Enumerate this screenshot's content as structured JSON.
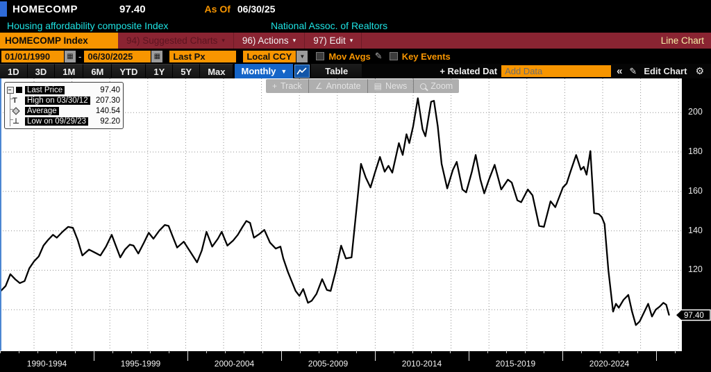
{
  "titlebar": {
    "ticker": "HOMECOMP",
    "price": "97.40",
    "as_of_label": "As Of",
    "as_of_date": "06/30/25"
  },
  "subtitle": {
    "description": "Housing affordability composite Index",
    "source": "National Assoc. of Realtors"
  },
  "menubar": {
    "security_box": "HOMECOMP Index",
    "items": [
      {
        "label": "94) Suggested Charts",
        "caret": "▾",
        "disabled": true
      },
      {
        "label": "96) Actions",
        "caret": "▾",
        "disabled": false
      },
      {
        "label": "97) Edit",
        "caret": "▾",
        "disabled": false
      }
    ],
    "right_label": "Line Chart"
  },
  "toolbar": {
    "start_date": "01/01/1990",
    "range_separator": "-",
    "end_date": "06/30/2025",
    "price_field": "Last Px",
    "currency_field": "Local CCY",
    "mov_avgs_label": "Mov Avgs",
    "key_events_label": "Key Events",
    "calendar_icon": "▦",
    "dropdown_icon": "▼",
    "pencil_icon": "✎"
  },
  "tabbar": {
    "ranges": [
      "1D",
      "3D",
      "1M",
      "6M",
      "YTD",
      "1Y",
      "5Y",
      "Max"
    ],
    "period": "Monthly",
    "period_caret": "▼",
    "table_label": "Table",
    "related_label": "+ Related Dat",
    "add_data_placeholder": "Add Data",
    "collapse_label": "«",
    "edit_chart_label": "Edit Chart",
    "edit_pencil": "✎",
    "gear_icon": "⚙"
  },
  "chart_tools": {
    "items": [
      "Track",
      "Annotate",
      "News",
      "Zoom"
    ],
    "icons": [
      "+",
      "∠",
      "▤",
      "mag"
    ]
  },
  "legend": {
    "rows": [
      {
        "label": "Last Price",
        "value": "97.40"
      },
      {
        "label": "High on 03/30/12",
        "value": "207.30"
      },
      {
        "label": "Average",
        "value": "140.54"
      },
      {
        "label": "Low on 09/29/23",
        "value": "92.20"
      }
    ]
  },
  "colors": {
    "amber": "#f79500",
    "maroon": "#8a2432",
    "cyan": "#1ee3e3",
    "blue": "#1565c8",
    "line": "#000000",
    "grid": "#8f8f8f"
  },
  "chart_data": {
    "type": "line",
    "title": "HOMECOMP Index - Housing affordability composite Index (National Assoc. of Realtors)",
    "x_unit": "decimal_year",
    "x_range": [
      1990,
      2026
    ],
    "ylim": [
      88,
      214
    ],
    "y_ticks": [
      100,
      120,
      140,
      160,
      180,
      200
    ],
    "y_axis_labels": [
      "200",
      "180",
      "160",
      "140",
      "120"
    ],
    "y_axis_side": "right",
    "grid": "dotted",
    "legend_position": "top-left",
    "last_price": 97.4,
    "last_price_tag": "97.40",
    "high": {
      "date": "03/30/12",
      "value": 207.3
    },
    "average": 140.54,
    "low": {
      "date": "09/29/23",
      "value": 92.2
    },
    "x_sections": [
      "1990-1994",
      "1995-1999",
      "2000-2004",
      "2005-2009",
      "2010-2014",
      "2015-2019",
      "2020-2024"
    ],
    "points": [
      [
        1990.0,
        111
      ],
      [
        1990.25,
        109.5
      ],
      [
        1990.5,
        112
      ],
      [
        1990.75,
        118
      ],
      [
        1991.0,
        115.5
      ],
      [
        1991.25,
        113.5
      ],
      [
        1991.5,
        114.5
      ],
      [
        1991.75,
        121
      ],
      [
        1992.0,
        124.5
      ],
      [
        1992.25,
        127
      ],
      [
        1992.5,
        132.5
      ],
      [
        1992.75,
        135.5
      ],
      [
        1993.0,
        138
      ],
      [
        1993.2,
        136.5
      ],
      [
        1993.5,
        139.5
      ],
      [
        1993.8,
        142
      ],
      [
        1994.05,
        141.5
      ],
      [
        1994.3,
        135.5
      ],
      [
        1994.55,
        127.5
      ],
      [
        1994.9,
        130.5
      ],
      [
        1995.2,
        129
      ],
      [
        1995.5,
        127.5
      ],
      [
        1995.8,
        132
      ],
      [
        1996.1,
        138
      ],
      [
        1996.35,
        131.5
      ],
      [
        1996.55,
        126.5
      ],
      [
        1996.8,
        130.5
      ],
      [
        1997.05,
        133
      ],
      [
        1997.25,
        132.5
      ],
      [
        1997.5,
        128.5
      ],
      [
        1997.8,
        134
      ],
      [
        1998.05,
        139
      ],
      [
        1998.3,
        136
      ],
      [
        1998.6,
        140
      ],
      [
        1998.9,
        143
      ],
      [
        1999.1,
        142.5
      ],
      [
        1999.3,
        137.5
      ],
      [
        1999.55,
        131.5
      ],
      [
        1999.9,
        134.5
      ],
      [
        2000.2,
        130
      ],
      [
        2000.6,
        124
      ],
      [
        2000.85,
        130
      ],
      [
        2001.1,
        139.5
      ],
      [
        2001.4,
        132
      ],
      [
        2001.7,
        136
      ],
      [
        2001.9,
        139.5
      ],
      [
        2002.2,
        132.5
      ],
      [
        2002.5,
        135
      ],
      [
        2002.75,
        138
      ],
      [
        2003.0,
        142
      ],
      [
        2003.2,
        145
      ],
      [
        2003.4,
        144
      ],
      [
        2003.6,
        136.5
      ],
      [
        2003.9,
        138.5
      ],
      [
        2004.15,
        140.5
      ],
      [
        2004.45,
        134
      ],
      [
        2004.75,
        131
      ],
      [
        2005.0,
        132
      ],
      [
        2005.15,
        126
      ],
      [
        2005.4,
        119
      ],
      [
        2005.8,
        109.5
      ],
      [
        2006.0,
        107
      ],
      [
        2006.2,
        110.5
      ],
      [
        2006.45,
        103.5
      ],
      [
        2006.65,
        104.5
      ],
      [
        2006.9,
        108
      ],
      [
        2007.2,
        115.5
      ],
      [
        2007.45,
        110
      ],
      [
        2007.65,
        109.5
      ],
      [
        2007.9,
        119
      ],
      [
        2008.2,
        132.5
      ],
      [
        2008.45,
        126
      ],
      [
        2008.75,
        126.5
      ],
      [
        2009.0,
        150
      ],
      [
        2009.25,
        174
      ],
      [
        2009.5,
        167
      ],
      [
        2009.75,
        162
      ],
      [
        2010.0,
        170
      ],
      [
        2010.25,
        177.5
      ],
      [
        2010.5,
        170
      ],
      [
        2010.7,
        173
      ],
      [
        2010.9,
        169.5
      ],
      [
        2011.25,
        184.5
      ],
      [
        2011.45,
        178.5
      ],
      [
        2011.65,
        189
      ],
      [
        2011.8,
        184.5
      ],
      [
        2012.0,
        193
      ],
      [
        2012.25,
        207.3
      ],
      [
        2012.5,
        191.5
      ],
      [
        2012.65,
        188
      ],
      [
        2012.95,
        205.5
      ],
      [
        2013.1,
        206
      ],
      [
        2013.3,
        193
      ],
      [
        2013.5,
        174
      ],
      [
        2013.8,
        161.5
      ],
      [
        2014.1,
        171
      ],
      [
        2014.3,
        175
      ],
      [
        2014.6,
        161
      ],
      [
        2014.8,
        159.5
      ],
      [
        2015.1,
        170
      ],
      [
        2015.3,
        178.5
      ],
      [
        2015.55,
        166
      ],
      [
        2015.75,
        159
      ],
      [
        2016.0,
        166
      ],
      [
        2016.3,
        173.5
      ],
      [
        2016.65,
        161
      ],
      [
        2017.0,
        166
      ],
      [
        2017.2,
        164.5
      ],
      [
        2017.5,
        155.5
      ],
      [
        2017.7,
        154.5
      ],
      [
        2018.05,
        161
      ],
      [
        2018.3,
        158
      ],
      [
        2018.65,
        142.5
      ],
      [
        2018.9,
        142
      ],
      [
        2019.25,
        155
      ],
      [
        2019.5,
        152
      ],
      [
        2019.9,
        162
      ],
      [
        2020.1,
        164
      ],
      [
        2020.3,
        170
      ],
      [
        2020.6,
        178.5
      ],
      [
        2020.85,
        171
      ],
      [
        2021.0,
        172.5
      ],
      [
        2021.15,
        168.5
      ],
      [
        2021.35,
        180.5
      ],
      [
        2021.55,
        149
      ],
      [
        2021.8,
        148.5
      ],
      [
        2021.95,
        147
      ],
      [
        2022.1,
        143.5
      ],
      [
        2022.3,
        120
      ],
      [
        2022.55,
        99
      ],
      [
        2022.7,
        103
      ],
      [
        2022.85,
        101
      ],
      [
        2023.1,
        105
      ],
      [
        2023.35,
        107.5
      ],
      [
        2023.55,
        99
      ],
      [
        2023.75,
        92.2
      ],
      [
        2023.95,
        94
      ],
      [
        2024.2,
        99
      ],
      [
        2024.4,
        103
      ],
      [
        2024.6,
        96.5
      ],
      [
        2024.8,
        100
      ],
      [
        2025.0,
        101.5
      ],
      [
        2025.2,
        103.5
      ],
      [
        2025.35,
        102.5
      ],
      [
        2025.5,
        97.4
      ]
    ]
  }
}
